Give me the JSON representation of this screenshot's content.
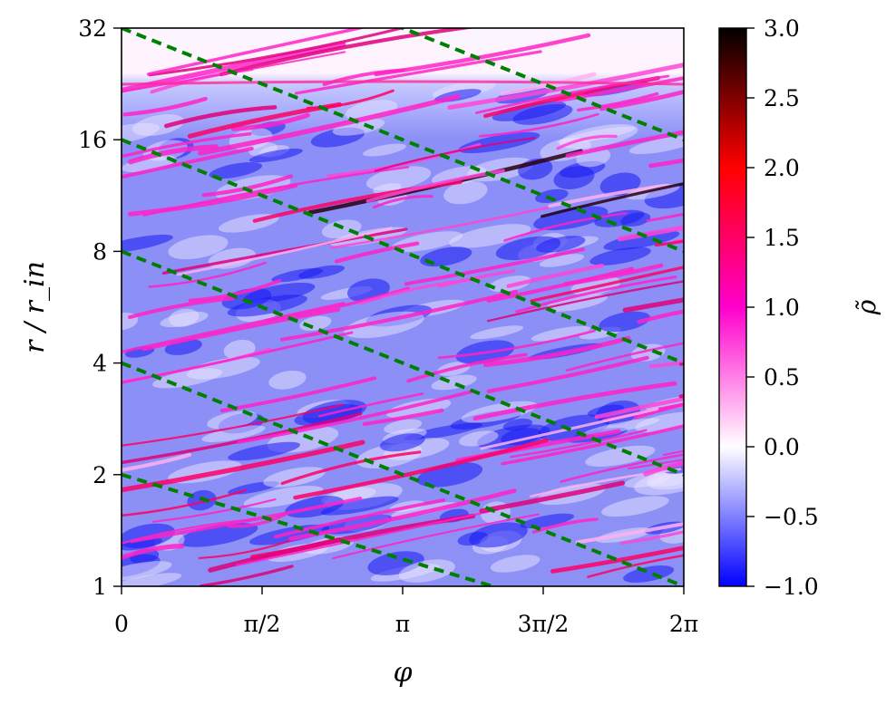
{
  "chart_data": {
    "type": "heatmap",
    "title": "",
    "xlabel": "φ",
    "ylabel": "r / r_in",
    "y_scale": "log2",
    "xlim": [
      0,
      6.2832
    ],
    "ylim": [
      1,
      32
    ],
    "x_ticks": [
      0,
      1.5708,
      3.1416,
      4.7124,
      6.2832
    ],
    "x_tick_labels": [
      "0",
      "π/2",
      "π",
      "3π/2",
      "2π"
    ],
    "y_ticks": [
      1,
      2,
      4,
      8,
      16,
      32
    ],
    "y_tick_labels": [
      "1",
      "2",
      "4",
      "8",
      "16",
      "32"
    ],
    "colorbar": {
      "label": "ρ̃",
      "range": [
        -1.0,
        3.0
      ],
      "ticks": [
        -1.0,
        -0.5,
        0.0,
        0.5,
        1.0,
        1.5,
        2.0,
        2.5,
        3.0
      ],
      "tick_labels": [
        "−1.0",
        "−0.5",
        "0.0",
        "0.5",
        "1.0",
        "1.5",
        "2.0",
        "2.5",
        "3.0"
      ],
      "colormap": [
        {
          "value": -1.0,
          "color": "#0000ff"
        },
        {
          "value": 0.0,
          "color": "#ffffff"
        },
        {
          "value": 1.0,
          "color": "#ff00cc"
        },
        {
          "value": 2.0,
          "color": "#ff0000"
        },
        {
          "value": 3.0,
          "color": "#000000"
        }
      ]
    },
    "field_description": "Turbulent density perturbation forming trailing spiral filaments; near-white above r ≈ 24",
    "reference_lines": {
      "color": "#008000",
      "style": "dashed",
      "lines": [
        {
          "x": [
            0,
            6.2832
          ],
          "y": [
            2,
            0.7
          ]
        },
        {
          "x": [
            0,
            6.2832
          ],
          "y": [
            4,
            1
          ]
        },
        {
          "x": [
            0,
            6.2832
          ],
          "y": [
            8,
            2
          ]
        },
        {
          "x": [
            0,
            6.2832
          ],
          "y": [
            16,
            4
          ]
        },
        {
          "x": [
            0,
            6.2832
          ],
          "y": [
            32,
            8
          ]
        },
        {
          "x": [
            0,
            6.2832
          ],
          "y": [
            64,
            16
          ]
        }
      ]
    }
  }
}
